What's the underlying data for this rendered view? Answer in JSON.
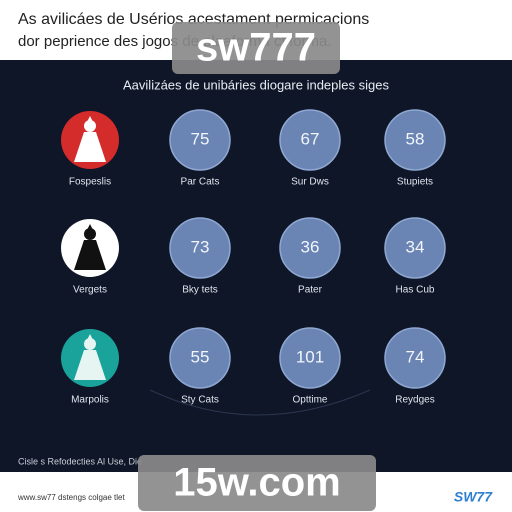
{
  "header": {
    "title": "As avilicáes de Usérios acestament permicacions",
    "subtitle": "dor peprience des jogos de plaaforma ctiforma."
  },
  "panel": {
    "title": "Aavilizáes de unibáries diogare indeples siges",
    "grid": [
      [
        {
          "label": "Fospeslis",
          "icon": "red"
        },
        {
          "label": "Par Cats",
          "value": 75
        },
        {
          "label": "Sur Dws",
          "value": 67
        },
        {
          "label": "Stupiets",
          "value": 58
        }
      ],
      [
        {
          "label": "Vergets",
          "icon": "white"
        },
        {
          "label": "Bky tets",
          "value": 73
        },
        {
          "label": "Pater",
          "value": 36
        },
        {
          "label": "Has Cub",
          "value": 34
        }
      ],
      [
        {
          "label": "Marpolis",
          "icon": "teal"
        },
        {
          "label": "Sty Cats",
          "value": 55
        },
        {
          "label": "Opttime",
          "value": 101
        },
        {
          "label": "Reydges",
          "value": 74
        }
      ]
    ],
    "footnote": "Cisle s Refodecties Al Use, Die"
  },
  "footer": {
    "text": "www.sw77 dstengs colgae tlet",
    "logo": "SW77"
  },
  "watermarks": [
    "sw777",
    "15w.com"
  ]
}
